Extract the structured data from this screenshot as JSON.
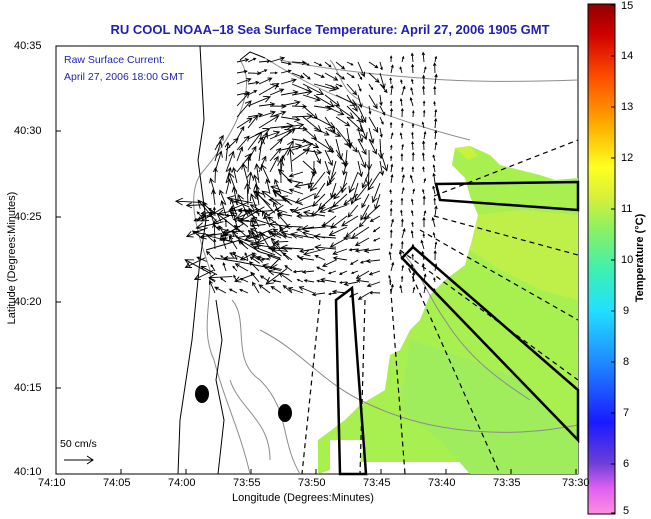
{
  "title": "RU COOL  NOAA–18  Sea Surface Temperature:  April 27, 2006 1905 GMT",
  "legend_note": {
    "line1": "Raw Surface Current:",
    "line2": "April 27, 2006 18:00 GMT"
  },
  "axes": {
    "xlabel": "Longitude (Degrees:Minutes)",
    "ylabel": "Latitude (Degrees:Minutes)",
    "x_ticks": [
      "74:10",
      "74:05",
      "74:00",
      "73:55",
      "73:50",
      "73:45",
      "73:40",
      "73:35",
      "73:30"
    ],
    "y_ticks": [
      "40:10",
      "40:15",
      "40:20",
      "40:25",
      "40:30",
      "40:35"
    ]
  },
  "colorbar": {
    "title": "Temperature (°C)",
    "ticks": [
      "5",
      "6",
      "7",
      "8",
      "9",
      "10",
      "11",
      "12",
      "13",
      "14",
      "15"
    ],
    "min": 5,
    "max": 15
  },
  "scale_arrow": {
    "label": "50 cm/s"
  },
  "colors": {
    "title": "#1f1fb5",
    "sst_land_mask_green": "#a8ef50",
    "coast": "#000000",
    "contours": "#8c8c8c"
  }
}
